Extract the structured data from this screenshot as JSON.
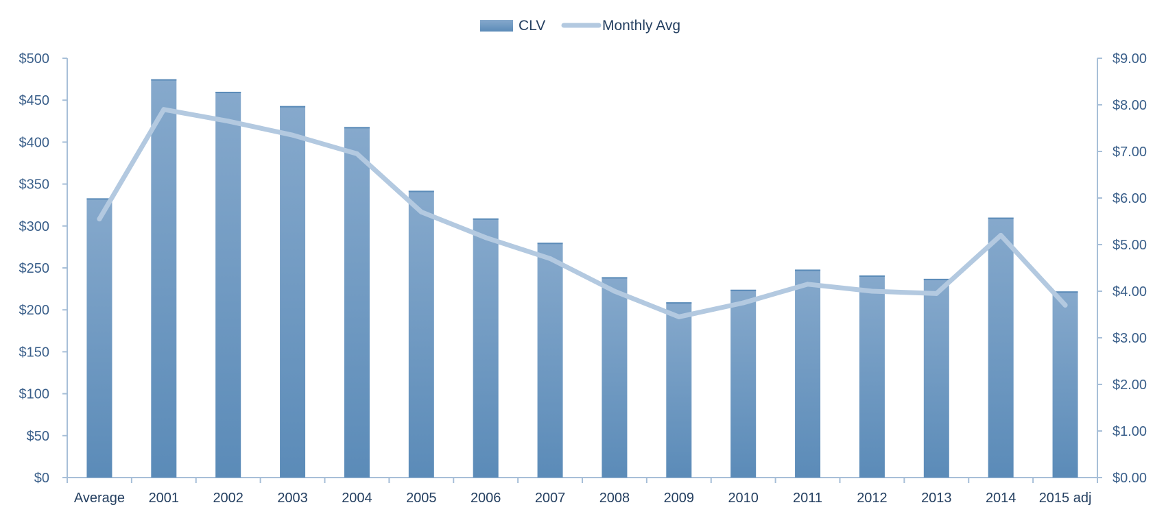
{
  "colors": {
    "bar": "#5b8bb8",
    "bar_light": "#86a9cc",
    "line": "#b3c9e0",
    "axis": "#a7bfd8",
    "text": "#3a5f8a"
  },
  "legend": [
    {
      "label": "CLV",
      "kind": "bar"
    },
    {
      "label": "Monthly Avg",
      "kind": "line"
    }
  ],
  "chart_data": {
    "type": "bar",
    "categories": [
      "Average",
      "2001",
      "2002",
      "2003",
      "2004",
      "2005",
      "2006",
      "2007",
      "2008",
      "2009",
      "2010",
      "2011",
      "2012",
      "2013",
      "2014",
      "2015 adj"
    ],
    "series": [
      {
        "name": "CLV",
        "type": "bar",
        "axis": "left",
        "values": [
          333,
          475,
          460,
          443,
          418,
          342,
          309,
          280,
          239,
          209,
          224,
          248,
          241,
          237,
          310,
          222
        ]
      },
      {
        "name": "Monthly Avg",
        "type": "line",
        "axis": "right",
        "values": [
          5.55,
          7.9,
          7.65,
          7.35,
          6.95,
          5.7,
          5.15,
          4.7,
          4.0,
          3.45,
          3.75,
          4.15,
          4.0,
          3.95,
          5.2,
          3.7
        ]
      }
    ],
    "y_left": {
      "range": [
        0,
        500
      ],
      "ticks": [
        0,
        50,
        100,
        150,
        200,
        250,
        300,
        350,
        400,
        450,
        500
      ],
      "tick_labels": [
        "$0",
        "$50",
        "$100",
        "$150",
        "$200",
        "$250",
        "$300",
        "$350",
        "$400",
        "$450",
        "$500"
      ]
    },
    "y_right": {
      "range": [
        0,
        9
      ],
      "ticks": [
        0,
        1,
        2,
        3,
        4,
        5,
        6,
        7,
        8,
        9
      ],
      "tick_labels": [
        "$0.00",
        "$1.00",
        "$2.00",
        "$3.00",
        "$4.00",
        "$5.00",
        "$6.00",
        "$7.00",
        "$8.00",
        "$9.00"
      ]
    },
    "title": "",
    "xlabel": "",
    "ylabel": "",
    "grid": false,
    "legend_position": "top-center"
  }
}
